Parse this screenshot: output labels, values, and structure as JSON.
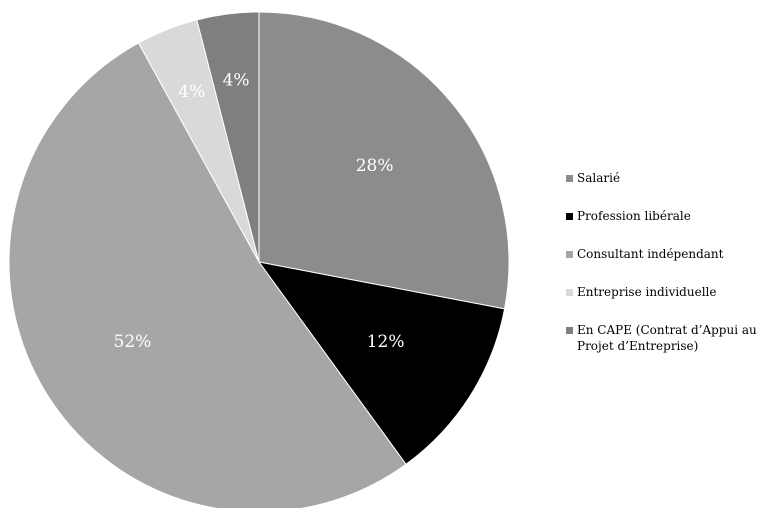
{
  "chart_data": {
    "type": "pie",
    "start_angle_deg": 0,
    "direction": "clockwise",
    "legend_position": "right",
    "slices": [
      {
        "label": "Salarié",
        "value": 28,
        "value_label": "28%",
        "color": "#8c8c8c"
      },
      {
        "label": "Profession libérale",
        "value": 12,
        "value_label": "12%",
        "color": "#000000"
      },
      {
        "label": "Consultant indépendant",
        "value": 52,
        "value_label": "52%",
        "color": "#a6a6a6"
      },
      {
        "label": "Entreprise individuelle",
        "value": 4,
        "value_label": "4%",
        "color": "#d9d9d9"
      },
      {
        "label": "En CAPE (Contrat d’Appui au Projet d’Entreprise)",
        "value": 4,
        "value_label": "4%",
        "color": "#7f7f7f"
      }
    ]
  }
}
